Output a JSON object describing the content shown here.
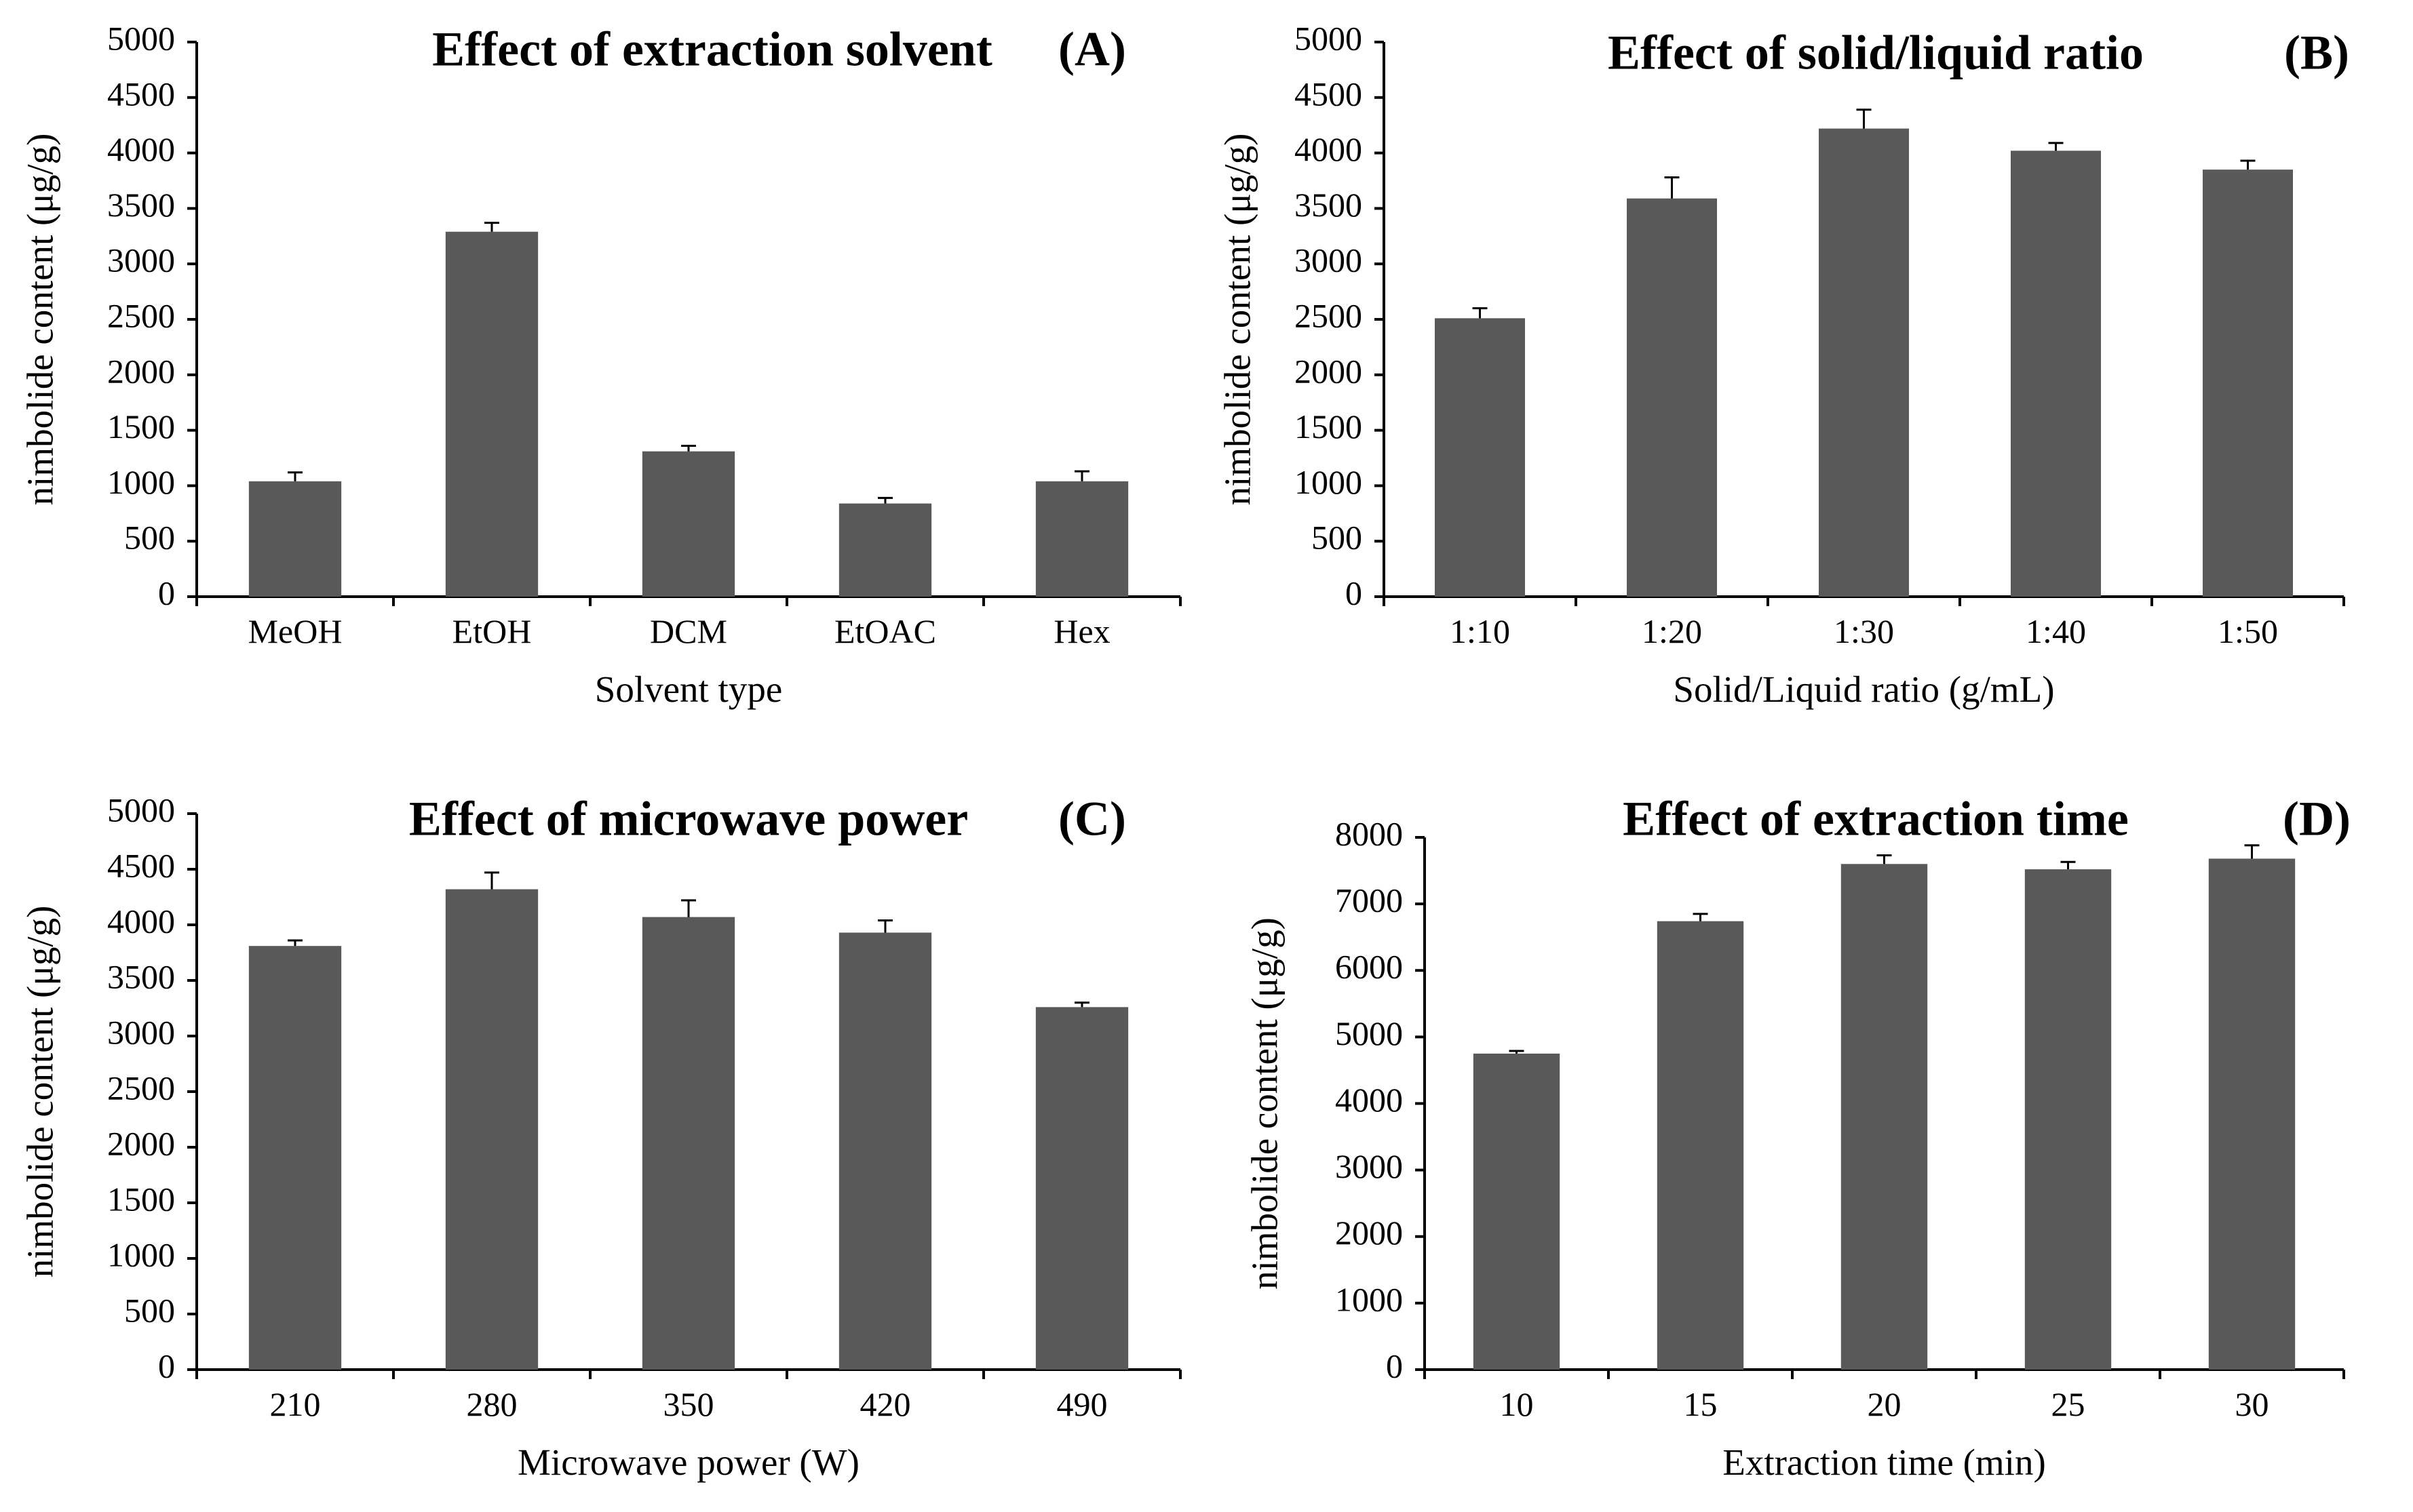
{
  "figure": {
    "colors": {
      "bar": "#595959",
      "axis": "#000000",
      "background": "#ffffff"
    }
  },
  "chart_data": [
    {
      "panel": "(A)",
      "type": "bar",
      "title": "Effect of extraction solvent",
      "xlabel": "Solvent type",
      "ylabel": "nimbolide content (μg/g)",
      "categories": [
        "MeOH",
        "EtOH",
        "DCM",
        "EtOAC",
        "Hex"
      ],
      "values": [
        1040,
        3290,
        1310,
        840,
        1040
      ],
      "errors": [
        80,
        80,
        50,
        50,
        90
      ],
      "ylim": [
        0,
        5000
      ],
      "yticks": [
        0,
        500,
        1000,
        1500,
        2000,
        2500,
        3000,
        3500,
        4000,
        4500,
        5000
      ],
      "grid": false,
      "legend": "none"
    },
    {
      "panel": "(B)",
      "type": "bar",
      "title": "Effect of solid/liquid ratio",
      "xlabel": "Solid/Liquid ratio (g/mL)",
      "ylabel": "nimbolide content (μg/g)",
      "categories": [
        "1:10",
        "1:20",
        "1:30",
        "1:40",
        "1:50"
      ],
      "values": [
        2510,
        3590,
        4220,
        4020,
        3850
      ],
      "errors": [
        90,
        190,
        170,
        70,
        80
      ],
      "ylim": [
        0,
        5000
      ],
      "yticks": [
        0,
        500,
        1000,
        1500,
        2000,
        2500,
        3000,
        3500,
        4000,
        4500,
        5000
      ],
      "grid": false,
      "legend": "none"
    },
    {
      "panel": "(C)",
      "type": "bar",
      "title": "Effect of microwave power",
      "xlabel": "Microwave power (W)",
      "ylabel": "nimbolide content  (μg/g)",
      "categories": [
        "210",
        "280",
        "350",
        "420",
        "490"
      ],
      "values": [
        3810,
        4320,
        4070,
        3930,
        3260
      ],
      "errors": [
        50,
        150,
        150,
        110,
        40
      ],
      "ylim": [
        0,
        5000
      ],
      "yticks": [
        0,
        500,
        1000,
        1500,
        2000,
        2500,
        3000,
        3500,
        4000,
        4500,
        5000
      ],
      "grid": false,
      "legend": "none"
    },
    {
      "panel": "(D)",
      "type": "bar",
      "title": "Effect of extraction time",
      "xlabel": "Extraction time (min)",
      "ylabel": "nimbolide content (μg/g)",
      "categories": [
        "10",
        "15",
        "20",
        "25",
        "30"
      ],
      "values": [
        4750,
        6740,
        7600,
        7520,
        7680
      ],
      "errors": [
        40,
        110,
        130,
        110,
        200
      ],
      "ylim": [
        0,
        8000
      ],
      "yticks": [
        0,
        1000,
        2000,
        3000,
        4000,
        5000,
        6000,
        7000,
        8000
      ],
      "grid": false,
      "legend": "none"
    }
  ]
}
